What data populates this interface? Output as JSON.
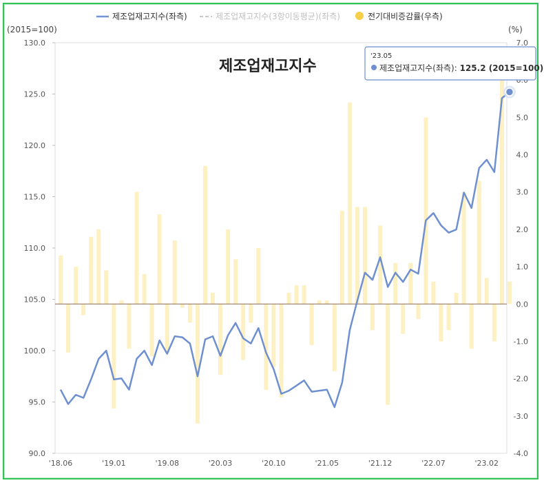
{
  "chart_data": {
    "type": "line",
    "title": "제조업재고지수",
    "left_unit": "(2015=100)",
    "right_unit": "(%)",
    "legend": [
      {
        "label": "제조업재고지수(좌측)",
        "color": "#7096d6",
        "kind": "line"
      },
      {
        "label": "제조업재고지수(3항이동평균)(좌측)",
        "color": "#c8c8c8",
        "kind": "dash"
      },
      {
        "label": "전기대비증감률(우측)",
        "color": "#f7cf4a",
        "kind": "dot"
      }
    ],
    "y_left": {
      "min": 90,
      "max": 130,
      "ticks": [
        "90.0",
        "95.0",
        "100.0",
        "105.0",
        "110.0",
        "115.0",
        "120.0",
        "125.0",
        "130.0"
      ]
    },
    "y_right": {
      "min": -4,
      "max": 7,
      "ticks": [
        "-4.0",
        "-3.0",
        "-2.0",
        "-1.0",
        "0.0",
        "1.0",
        "2.0",
        "3.0",
        "4.0",
        "5.0",
        "6.0",
        "7.0"
      ]
    },
    "x_ticks": [
      "'18.06",
      "'19.01",
      "'19.08",
      "'20.03",
      "'20.10",
      "'21.05",
      "'21.12",
      "'22.07",
      "'23.02"
    ],
    "x_tick_index": [
      0,
      7,
      14,
      21,
      28,
      35,
      42,
      49,
      56
    ],
    "series": [
      {
        "name": "제조업재고지수(좌측)",
        "color": "#7096d6",
        "axis": "left",
        "values": [
          96.2,
          94.8,
          95.7,
          95.4,
          97.2,
          99.2,
          100.0,
          97.2,
          97.3,
          96.2,
          99.2,
          100.0,
          98.6,
          101.0,
          99.7,
          101.4,
          101.3,
          100.7,
          97.5,
          101.1,
          101.4,
          99.5,
          101.5,
          102.7,
          101.2,
          100.7,
          102.2,
          99.8,
          98.2,
          95.8,
          96.1,
          96.6,
          97.1,
          96.0,
          96.1,
          96.2,
          94.5,
          96.9,
          102.0,
          104.9,
          107.6,
          106.9,
          109.1,
          106.2,
          107.6,
          106.7,
          107.9,
          107.5,
          112.7,
          113.4,
          112.2,
          111.5,
          111.8,
          115.4,
          113.9,
          117.8,
          118.6,
          117.4,
          124.6,
          125.2
        ]
      },
      {
        "name": "전기대비증감률(우측)",
        "color": "#fdf0c2",
        "axis": "right",
        "values": [
          1.3,
          -1.3,
          1.0,
          -0.3,
          1.8,
          2.0,
          0.9,
          -2.8,
          0.1,
          -1.2,
          3.0,
          0.8,
          -1.4,
          2.4,
          -1.3,
          1.7,
          -0.1,
          -0.5,
          -3.2,
          3.7,
          0.3,
          -1.9,
          2.0,
          1.2,
          -1.5,
          -0.5,
          1.5,
          -2.3,
          -1.7,
          -2.5,
          0.3,
          0.5,
          0.5,
          -1.1,
          0.1,
          0.1,
          -1.8,
          2.5,
          5.4,
          2.6,
          2.6,
          -0.7,
          2.1,
          -2.7,
          1.1,
          -0.8,
          1.1,
          -0.4,
          5.0,
          0.6,
          -1.0,
          -0.7,
          0.3,
          3.0,
          -1.2,
          3.3,
          0.7,
          -1.0,
          6.1,
          0.6
        ]
      }
    ],
    "tooltip": {
      "date": "'23.05",
      "series": "제조업재고지수(좌측)",
      "value": "125.2 (2015=100)"
    }
  }
}
